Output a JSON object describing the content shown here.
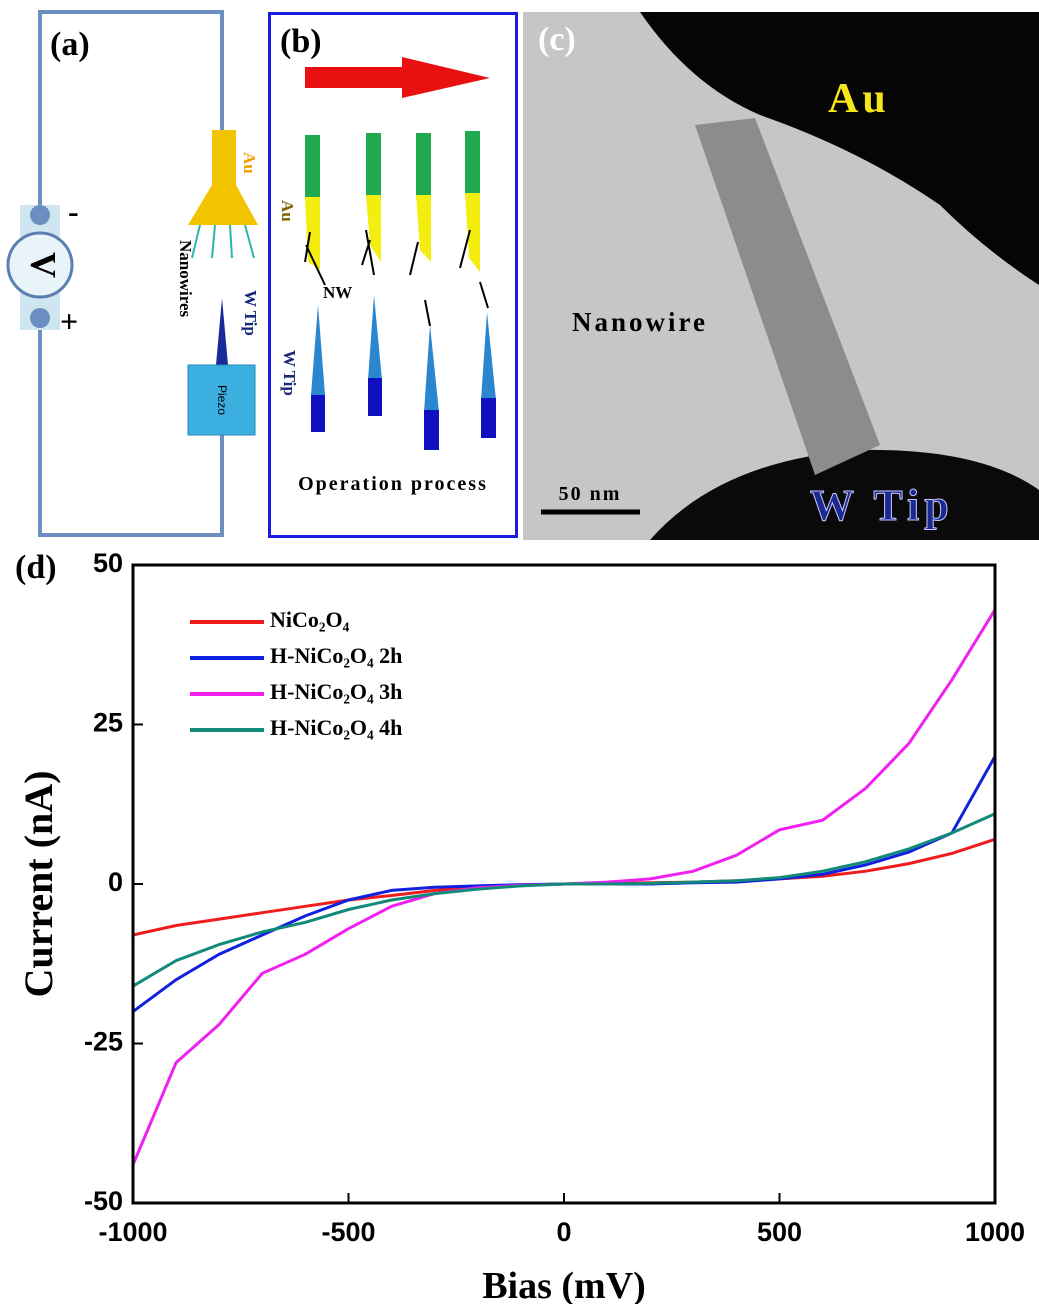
{
  "panel_a": {
    "label": "(a)",
    "minus": "-",
    "plus": "+",
    "meter": "V",
    "au": "Au",
    "nanowires": "Nanowires",
    "w_tip": "W Tip",
    "piezo": "Piezo"
  },
  "panel_b": {
    "label": "(b)",
    "au": "Au",
    "nw": "NW",
    "w_tip": "W Tip",
    "caption": "Operation process"
  },
  "panel_c": {
    "label": "(c)",
    "au": "Au",
    "nanowire": "Nanowire",
    "scale": "50 nm",
    "w_tip": "W Tip"
  },
  "chart_data": {
    "type": "line",
    "label": "(d)",
    "x_label": "Bias (mV)",
    "y_label": "Current (nA)",
    "xlim": [
      -1000,
      1000
    ],
    "ylim": [
      -50,
      50
    ],
    "xticks": [
      -1000,
      -500,
      0,
      500,
      1000
    ],
    "yticks": [
      -50,
      -25,
      0,
      25,
      50
    ],
    "x": [
      -1000,
      -900,
      -800,
      -700,
      -600,
      -500,
      -400,
      -300,
      -200,
      -100,
      0,
      100,
      200,
      300,
      400,
      500,
      600,
      700,
      800,
      900,
      1000
    ],
    "series": [
      {
        "name": "NiCo₂O₄",
        "color": "#ee1c1c",
        "values": [
          -8,
          -6.5,
          -5.5,
          -4.5,
          -3.5,
          -2.5,
          -1.8,
          -1,
          -0.5,
          -0.2,
          0,
          0.1,
          0.2,
          0.3,
          0.5,
          0.8,
          1.2,
          2,
          3.2,
          4.8,
          7
        ]
      },
      {
        "name": "H-NiCo₂O₄ 2h",
        "color": "#1020e0",
        "values": [
          -20,
          -15,
          -11,
          -8,
          -5,
          -2.5,
          -1,
          -0.5,
          -0.3,
          -0.1,
          0,
          0,
          0,
          0.2,
          0.3,
          0.8,
          1.5,
          3,
          5,
          8,
          20
        ]
      },
      {
        "name": "H-NiCo₂O₄ 3h",
        "color": "#f020f0",
        "values": [
          -44,
          -28,
          -22,
          -14,
          -11,
          -7,
          -3.5,
          -1.5,
          -0.6,
          -0.2,
          0,
          0.3,
          0.8,
          2,
          4.5,
          8.5,
          10,
          15,
          22,
          32,
          43
        ]
      },
      {
        "name": "H-NiCo₂O₄ 4h",
        "color": "#128a7a",
        "values": [
          -16,
          -12,
          -9.5,
          -7.5,
          -6,
          -4,
          -2.5,
          -1.5,
          -0.8,
          -0.3,
          0,
          0,
          0.1,
          0.3,
          0.5,
          1,
          2,
          3.5,
          5.5,
          8,
          11
        ]
      }
    ]
  }
}
